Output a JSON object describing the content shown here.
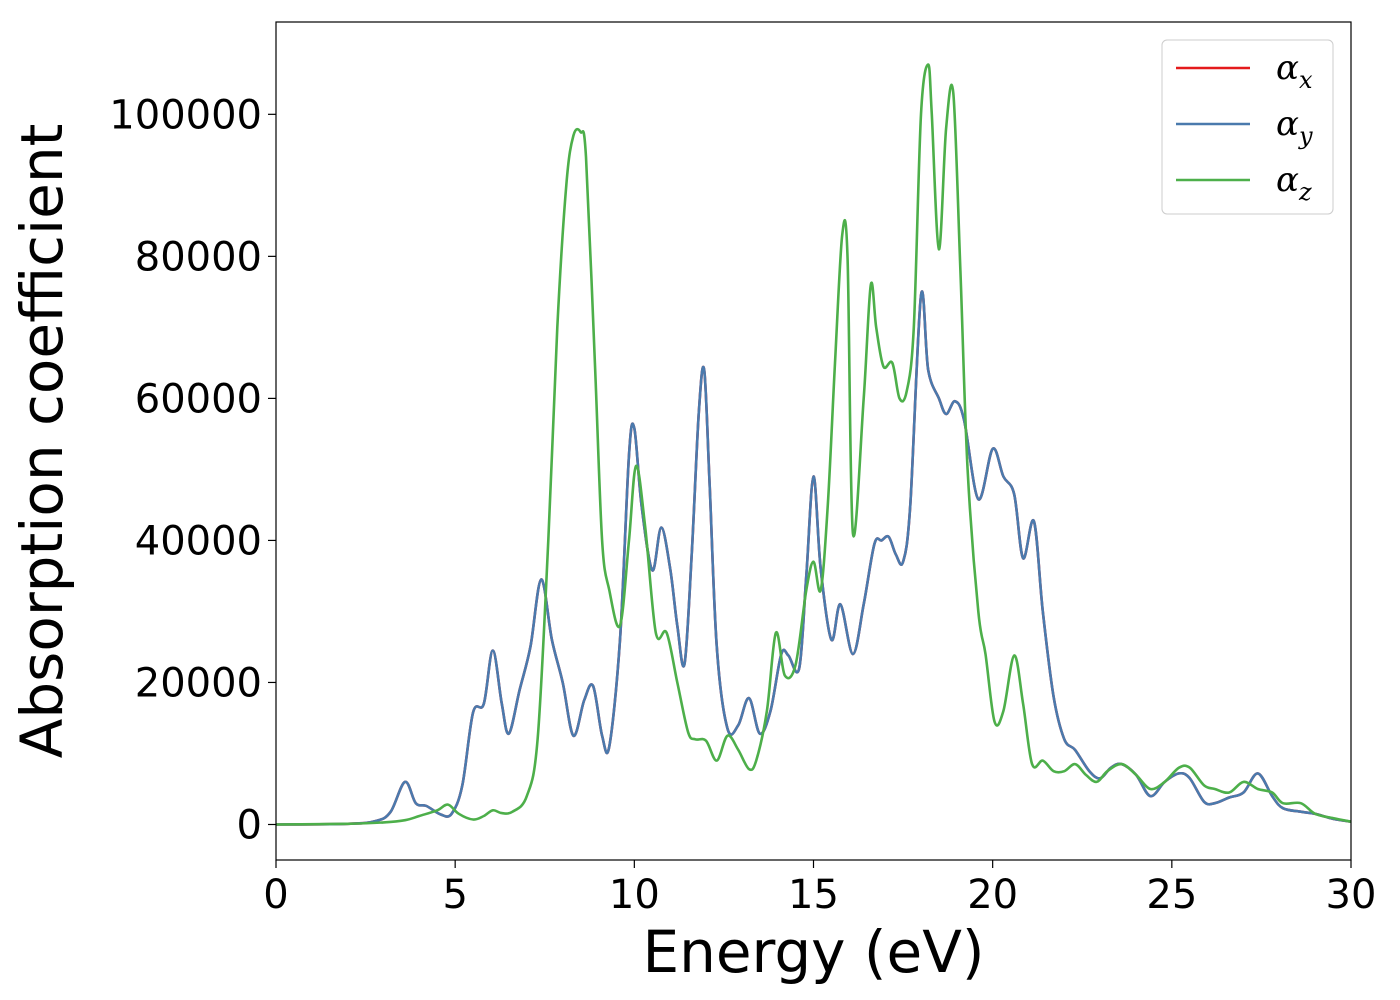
{
  "chart_data": {
    "type": "line",
    "xlabel": "Energy (eV)",
    "ylabel": "Absorption coefficient",
    "xlim": [
      0,
      30
    ],
    "ylim": [
      -5000,
      113000
    ],
    "xticks": [
      0,
      5,
      10,
      15,
      20,
      25,
      30
    ],
    "yticks": [
      0,
      20000,
      40000,
      60000,
      80000,
      100000
    ],
    "grid": false,
    "legend_position": "top-right",
    "series": [
      {
        "name": "α_x",
        "symbol": "α",
        "subscript": "x",
        "color": "#e41a1c",
        "x": [
          0,
          2,
          2.8,
          3.2,
          3.6,
          3.9,
          4.2,
          4.6,
          4.9,
          5.2,
          5.5,
          5.8,
          6.05,
          6.3,
          6.5,
          6.8,
          7.1,
          7.4,
          7.7,
          8.0,
          8.3,
          8.6,
          8.85,
          9.1,
          9.3,
          9.6,
          9.85,
          10.0,
          10.2,
          10.5,
          10.75,
          11.0,
          11.2,
          11.4,
          11.6,
          11.8,
          11.95,
          12.1,
          12.3,
          12.6,
          12.9,
          13.2,
          13.5,
          13.8,
          14.1,
          14.3,
          14.6,
          14.8,
          15.0,
          15.2,
          15.5,
          15.75,
          16.1,
          16.4,
          16.7,
          16.9,
          17.1,
          17.3,
          17.5,
          17.7,
          18.0,
          18.2,
          18.5,
          18.7,
          18.95,
          19.2,
          19.6,
          20.0,
          20.3,
          20.6,
          20.85,
          21.15,
          21.4,
          21.7,
          22.0,
          22.3,
          22.7,
          23.0,
          23.3,
          23.6,
          24.0,
          24.4,
          24.8,
          25.2,
          25.5,
          25.9,
          26.2,
          26.6,
          27.0,
          27.4,
          27.8,
          28.1,
          28.6,
          29.0,
          29.5,
          30.0
        ],
        "y": [
          0,
          100,
          500,
          1800,
          6000,
          3000,
          2600,
          1400,
          1500,
          5500,
          15800,
          17000,
          24500,
          17000,
          12800,
          19000,
          25000,
          34500,
          26000,
          20000,
          12500,
          17500,
          19500,
          12500,
          11000,
          26000,
          52000,
          55800,
          45000,
          35800,
          41800,
          36000,
          28000,
          22600,
          38000,
          58000,
          64000,
          48000,
          25000,
          13500,
          14000,
          17800,
          12800,
          16000,
          24000,
          23800,
          22000,
          35000,
          49000,
          36000,
          26000,
          31000,
          24000,
          31000,
          39500,
          40000,
          40500,
          38000,
          37000,
          45000,
          74500,
          64000,
          60000,
          57800,
          59600,
          57000,
          45800,
          52900,
          49000,
          46500,
          37500,
          42700,
          30000,
          18000,
          12000,
          10500,
          7500,
          6500,
          8000,
          8500,
          7000,
          4000,
          6000,
          7200,
          6500,
          3200,
          3000,
          3800,
          4500,
          7200,
          4000,
          2300,
          1800,
          1500,
          800,
          400
        ]
      },
      {
        "name": "α_y",
        "symbol": "α",
        "subscript": "y",
        "color": "#4a7aad",
        "x": [
          0,
          2,
          2.8,
          3.2,
          3.6,
          3.9,
          4.2,
          4.6,
          4.9,
          5.2,
          5.5,
          5.8,
          6.05,
          6.3,
          6.5,
          6.8,
          7.1,
          7.4,
          7.7,
          8.0,
          8.3,
          8.6,
          8.85,
          9.1,
          9.3,
          9.6,
          9.85,
          10.0,
          10.2,
          10.5,
          10.75,
          11.0,
          11.2,
          11.4,
          11.6,
          11.8,
          11.95,
          12.1,
          12.3,
          12.6,
          12.9,
          13.2,
          13.5,
          13.8,
          14.1,
          14.3,
          14.6,
          14.8,
          15.0,
          15.2,
          15.5,
          15.75,
          16.1,
          16.4,
          16.7,
          16.9,
          17.1,
          17.3,
          17.5,
          17.7,
          18.0,
          18.2,
          18.5,
          18.7,
          18.95,
          19.2,
          19.6,
          20.0,
          20.3,
          20.6,
          20.85,
          21.15,
          21.4,
          21.7,
          22.0,
          22.3,
          22.7,
          23.0,
          23.3,
          23.6,
          24.0,
          24.4,
          24.8,
          25.2,
          25.5,
          25.9,
          26.2,
          26.6,
          27.0,
          27.4,
          27.8,
          28.1,
          28.6,
          29.0,
          29.5,
          30.0
        ],
        "y": [
          0,
          100,
          500,
          1800,
          6000,
          3000,
          2600,
          1400,
          1500,
          5500,
          15800,
          17000,
          24500,
          17000,
          12800,
          19000,
          25000,
          34500,
          26000,
          20000,
          12500,
          17500,
          19500,
          12500,
          11000,
          26000,
          52000,
          55800,
          45000,
          35800,
          41800,
          36000,
          28000,
          22600,
          38000,
          58000,
          64000,
          48000,
          25000,
          13500,
          14000,
          17800,
          12800,
          16000,
          24000,
          23800,
          22000,
          35000,
          49000,
          36000,
          26000,
          31000,
          24000,
          31000,
          39500,
          40000,
          40500,
          38000,
          37000,
          45000,
          74500,
          64000,
          60000,
          57800,
          59600,
          57000,
          45800,
          52900,
          49000,
          46500,
          37500,
          42700,
          30000,
          18000,
          12000,
          10500,
          7500,
          6500,
          8000,
          8500,
          7000,
          4000,
          6000,
          7200,
          6500,
          3200,
          3000,
          3800,
          4500,
          7200,
          4000,
          2300,
          1800,
          1500,
          800,
          400
        ]
      },
      {
        "name": "α_z",
        "symbol": "α",
        "subscript": "z",
        "color": "#4daf4a",
        "x": [
          0,
          2,
          3,
          3.6,
          4.0,
          4.5,
          4.8,
          5.1,
          5.5,
          5.8,
          6.05,
          6.3,
          6.6,
          7.0,
          7.3,
          7.6,
          7.85,
          8.1,
          8.3,
          8.5,
          8.65,
          8.9,
          9.1,
          9.3,
          9.6,
          9.85,
          10.05,
          10.3,
          10.6,
          10.9,
          11.2,
          11.5,
          11.7,
          12.0,
          12.3,
          12.6,
          12.9,
          13.2,
          13.4,
          13.7,
          13.95,
          14.2,
          14.5,
          14.8,
          15.0,
          15.2,
          15.4,
          15.6,
          15.8,
          15.95,
          16.1,
          16.4,
          16.6,
          16.75,
          16.95,
          17.2,
          17.4,
          17.6,
          17.8,
          18.0,
          18.2,
          18.3,
          18.5,
          18.7,
          18.9,
          19.1,
          19.3,
          19.6,
          19.8,
          20.05,
          20.3,
          20.6,
          20.85,
          21.1,
          21.4,
          21.7,
          22.0,
          22.3,
          22.6,
          22.9,
          23.2,
          23.6,
          24.0,
          24.4,
          24.8,
          25.2,
          25.5,
          25.9,
          26.2,
          26.6,
          27.0,
          27.4,
          27.8,
          28.1,
          28.6,
          29.0,
          29.5,
          30.0
        ],
        "y": [
          0,
          100,
          300,
          600,
          1200,
          2000,
          2800,
          1500,
          700,
          1200,
          2000,
          1600,
          1800,
          4000,
          12000,
          40000,
          70000,
          90000,
          97000,
          97500,
          94000,
          65000,
          40000,
          33000,
          28000,
          40000,
          50500,
          42000,
          27000,
          27000,
          20000,
          13000,
          12000,
          11800,
          9000,
          12500,
          10500,
          7800,
          9000,
          16000,
          27000,
          21000,
          22500,
          33000,
          37000,
          33000,
          45000,
          65000,
          83000,
          80000,
          41000,
          60000,
          76000,
          70000,
          64500,
          65000,
          60000,
          61000,
          70000,
          100000,
          107000,
          100000,
          81000,
          98000,
          103000,
          78000,
          50000,
          30000,
          24000,
          14500,
          16000,
          23800,
          17000,
          8500,
          9000,
          7500,
          7500,
          8500,
          7000,
          6000,
          7500,
          8500,
          7000,
          5000,
          6000,
          8000,
          8000,
          5500,
          5000,
          4500,
          6000,
          5000,
          4500,
          3000,
          3000,
          1500,
          900,
          400
        ]
      }
    ]
  }
}
